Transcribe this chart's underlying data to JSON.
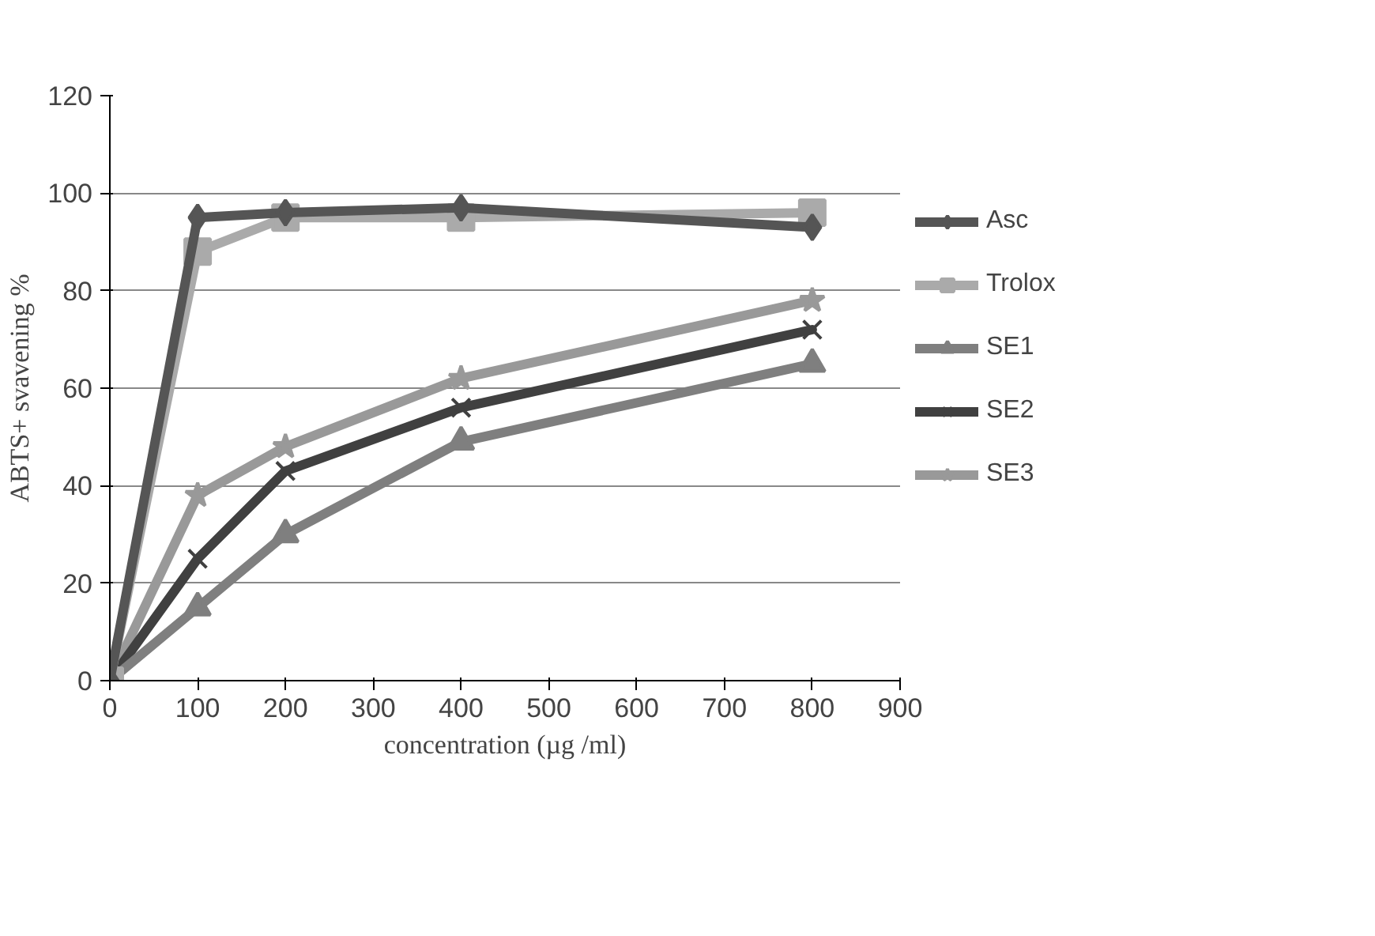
{
  "chart_data": {
    "type": "line",
    "xlabel": "concentration (µg /ml)",
    "ylabel": "ABTS+ svavening %",
    "x": [
      0,
      100,
      200,
      400,
      800
    ],
    "xlim": [
      0,
      900
    ],
    "xticks": [
      0,
      100,
      200,
      300,
      400,
      500,
      600,
      700,
      800,
      900
    ],
    "ylim": [
      0,
      120
    ],
    "yticks": [
      0,
      20,
      40,
      60,
      80,
      100,
      120
    ],
    "grid": "y",
    "legend": "right",
    "series": [
      {
        "name": "Asc",
        "color": "#555555",
        "marker": "diamond",
        "values": [
          0,
          95,
          96,
          97,
          93
        ]
      },
      {
        "name": "Trolox",
        "color": "#aaaaaa",
        "marker": "square",
        "values": [
          0,
          88,
          95,
          95,
          96
        ]
      },
      {
        "name": "SE1",
        "color": "#7f7f7f",
        "marker": "triangle",
        "values": [
          0,
          15,
          30,
          49,
          65
        ]
      },
      {
        "name": "SE2",
        "color": "#404040",
        "marker": "cross",
        "values": [
          0,
          25,
          43,
          56,
          72
        ]
      },
      {
        "name": "SE3",
        "color": "#999999",
        "marker": "star",
        "values": [
          0,
          38,
          48,
          62,
          78
        ]
      }
    ]
  }
}
